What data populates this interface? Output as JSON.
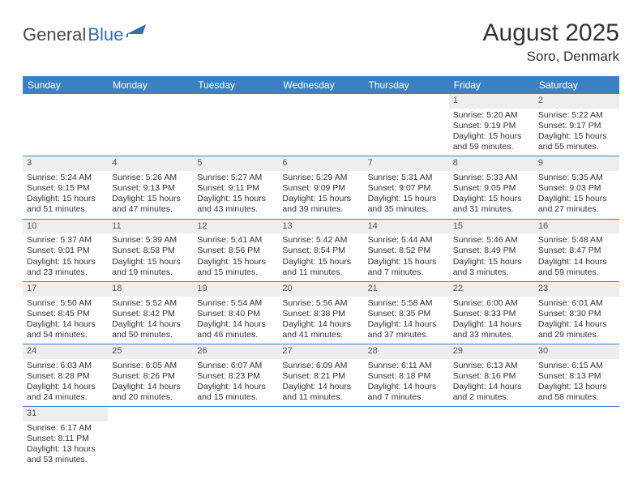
{
  "logo": {
    "part1": "General",
    "part2": "Blue"
  },
  "title": "August 2025",
  "location": "Soro, Denmark",
  "colors": {
    "header_bg": "#3b82c4",
    "daynum_bg": "#eeeeee",
    "border": "#3b82c4",
    "text": "#333333",
    "logo_gray": "#4a4a4a",
    "logo_blue": "#2f6fb3"
  },
  "dow": [
    "Sunday",
    "Monday",
    "Tuesday",
    "Wednesday",
    "Thursday",
    "Friday",
    "Saturday"
  ],
  "first_dow": 5,
  "days": [
    {
      "n": 1,
      "sr": "5:20 AM",
      "ss": "9:19 PM",
      "dl": "15 hours and 59 minutes."
    },
    {
      "n": 2,
      "sr": "5:22 AM",
      "ss": "9:17 PM",
      "dl": "15 hours and 55 minutes."
    },
    {
      "n": 3,
      "sr": "5:24 AM",
      "ss": "9:15 PM",
      "dl": "15 hours and 51 minutes."
    },
    {
      "n": 4,
      "sr": "5:26 AM",
      "ss": "9:13 PM",
      "dl": "15 hours and 47 minutes."
    },
    {
      "n": 5,
      "sr": "5:27 AM",
      "ss": "9:11 PM",
      "dl": "15 hours and 43 minutes."
    },
    {
      "n": 6,
      "sr": "5:29 AM",
      "ss": "9:09 PM",
      "dl": "15 hours and 39 minutes."
    },
    {
      "n": 7,
      "sr": "5:31 AM",
      "ss": "9:07 PM",
      "dl": "15 hours and 35 minutes."
    },
    {
      "n": 8,
      "sr": "5:33 AM",
      "ss": "9:05 PM",
      "dl": "15 hours and 31 minutes."
    },
    {
      "n": 9,
      "sr": "5:35 AM",
      "ss": "9:03 PM",
      "dl": "15 hours and 27 minutes."
    },
    {
      "n": 10,
      "sr": "5:37 AM",
      "ss": "9:01 PM",
      "dl": "15 hours and 23 minutes."
    },
    {
      "n": 11,
      "sr": "5:39 AM",
      "ss": "8:58 PM",
      "dl": "15 hours and 19 minutes."
    },
    {
      "n": 12,
      "sr": "5:41 AM",
      "ss": "8:56 PM",
      "dl": "15 hours and 15 minutes."
    },
    {
      "n": 13,
      "sr": "5:42 AM",
      "ss": "8:54 PM",
      "dl": "15 hours and 11 minutes."
    },
    {
      "n": 14,
      "sr": "5:44 AM",
      "ss": "8:52 PM",
      "dl": "15 hours and 7 minutes."
    },
    {
      "n": 15,
      "sr": "5:46 AM",
      "ss": "8:49 PM",
      "dl": "15 hours and 3 minutes."
    },
    {
      "n": 16,
      "sr": "5:48 AM",
      "ss": "8:47 PM",
      "dl": "14 hours and 59 minutes."
    },
    {
      "n": 17,
      "sr": "5:50 AM",
      "ss": "8:45 PM",
      "dl": "14 hours and 54 minutes."
    },
    {
      "n": 18,
      "sr": "5:52 AM",
      "ss": "8:42 PM",
      "dl": "14 hours and 50 minutes."
    },
    {
      "n": 19,
      "sr": "5:54 AM",
      "ss": "8:40 PM",
      "dl": "14 hours and 46 minutes."
    },
    {
      "n": 20,
      "sr": "5:56 AM",
      "ss": "8:38 PM",
      "dl": "14 hours and 41 minutes."
    },
    {
      "n": 21,
      "sr": "5:58 AM",
      "ss": "8:35 PM",
      "dl": "14 hours and 37 minutes."
    },
    {
      "n": 22,
      "sr": "6:00 AM",
      "ss": "8:33 PM",
      "dl": "14 hours and 33 minutes."
    },
    {
      "n": 23,
      "sr": "6:01 AM",
      "ss": "8:30 PM",
      "dl": "14 hours and 29 minutes."
    },
    {
      "n": 24,
      "sr": "6:03 AM",
      "ss": "8:28 PM",
      "dl": "14 hours and 24 minutes."
    },
    {
      "n": 25,
      "sr": "6:05 AM",
      "ss": "8:26 PM",
      "dl": "14 hours and 20 minutes."
    },
    {
      "n": 26,
      "sr": "6:07 AM",
      "ss": "8:23 PM",
      "dl": "14 hours and 15 minutes."
    },
    {
      "n": 27,
      "sr": "6:09 AM",
      "ss": "8:21 PM",
      "dl": "14 hours and 11 minutes."
    },
    {
      "n": 28,
      "sr": "6:11 AM",
      "ss": "8:18 PM",
      "dl": "14 hours and 7 minutes."
    },
    {
      "n": 29,
      "sr": "6:13 AM",
      "ss": "8:16 PM",
      "dl": "14 hours and 2 minutes."
    },
    {
      "n": 30,
      "sr": "6:15 AM",
      "ss": "8:13 PM",
      "dl": "13 hours and 58 minutes."
    },
    {
      "n": 31,
      "sr": "6:17 AM",
      "ss": "8:11 PM",
      "dl": "13 hours and 53 minutes."
    }
  ],
  "labels": {
    "sunrise": "Sunrise:",
    "sunset": "Sunset:",
    "daylight": "Daylight:"
  }
}
